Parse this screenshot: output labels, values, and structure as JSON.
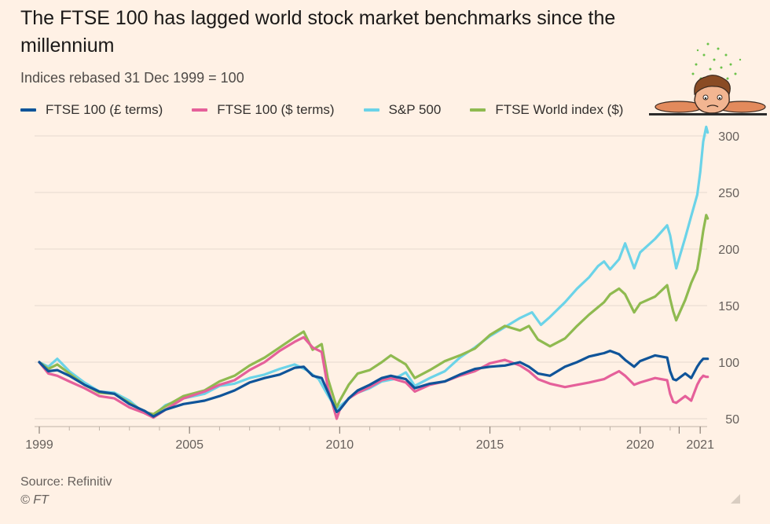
{
  "header": {
    "title": "The FTSE 100 has lagged world stock market benchmarks since the millennium",
    "subtitle": "Indices rebased 31 Dec 1999 = 100"
  },
  "footer": {
    "source": "Source: Refinitiv",
    "copyright": "© FT"
  },
  "legend": [
    {
      "label": "FTSE 100 (£ terms)",
      "color": "#0f5499"
    },
    {
      "label": "FTSE 100 ($ terms)",
      "color": "#e5609a"
    },
    {
      "label": "S&P 500",
      "color": "#6bd3e8"
    },
    {
      "label": "FTSE World index ($)",
      "color": "#8fba50"
    }
  ],
  "chart_data": {
    "type": "line",
    "title": "The FTSE 100 has lagged world stock market benchmarks since the millennium",
    "subtitle": "Indices rebased 31 Dec 1999 = 100",
    "xlabel": "",
    "ylabel": "",
    "xlim": [
      1999,
      2021.1
    ],
    "ylim": [
      50,
      300
    ],
    "yticks": [
      50,
      100,
      150,
      200,
      250,
      300
    ],
    "xticks": [
      {
        "value": 1999,
        "label": "1999"
      },
      {
        "value": 2004,
        "label": "2005"
      },
      {
        "value": 2009,
        "label": "2010"
      },
      {
        "value": 2014,
        "label": "2015"
      },
      {
        "value": 2019,
        "label": "2020"
      },
      {
        "value": 2020.3,
        "label": ""
      },
      {
        "value": 2021,
        "label": "2021"
      }
    ],
    "grid": true,
    "series": [
      {
        "name": "S&P 500",
        "color": "#6bd3e8",
        "points": [
          [
            1999,
            100
          ],
          [
            1999.3,
            96
          ],
          [
            1999.6,
            103
          ],
          [
            2000,
            92
          ],
          [
            2000.5,
            82
          ],
          [
            2001,
            74
          ],
          [
            2001.5,
            73
          ],
          [
            2002,
            66
          ],
          [
            2002.5,
            55
          ],
          [
            2002.8,
            53
          ],
          [
            2003.2,
            62
          ],
          [
            2003.8,
            68
          ],
          [
            2004.5,
            72
          ],
          [
            2005,
            79
          ],
          [
            2005.5,
            81
          ],
          [
            2006,
            86
          ],
          [
            2006.5,
            89
          ],
          [
            2007,
            94
          ],
          [
            2007.5,
            98
          ],
          [
            2007.9,
            93
          ],
          [
            2008.3,
            85
          ],
          [
            2008.6,
            71
          ],
          [
            2008.9,
            58
          ],
          [
            2009,
            61
          ],
          [
            2009.5,
            72
          ],
          [
            2010,
            77
          ],
          [
            2010.4,
            83
          ],
          [
            2010.8,
            85
          ],
          [
            2011.2,
            91
          ],
          [
            2011.5,
            79
          ],
          [
            2012,
            86
          ],
          [
            2012.5,
            92
          ],
          [
            2013,
            104
          ],
          [
            2013.5,
            113
          ],
          [
            2014,
            123
          ],
          [
            2014.5,
            131
          ],
          [
            2015,
            139
          ],
          [
            2015.4,
            144
          ],
          [
            2015.7,
            133
          ],
          [
            2016,
            140
          ],
          [
            2016.5,
            153
          ],
          [
            2016.9,
            165
          ],
          [
            2017.3,
            175
          ],
          [
            2017.6,
            185
          ],
          [
            2017.8,
            189
          ],
          [
            2018,
            182
          ],
          [
            2018.3,
            191
          ],
          [
            2018.5,
            205
          ],
          [
            2018.8,
            183
          ],
          [
            2019,
            197
          ],
          [
            2019.5,
            209
          ],
          [
            2019.9,
            221
          ],
          [
            2020,
            212
          ],
          [
            2020.1,
            197
          ],
          [
            2020.2,
            183
          ],
          [
            2020.5,
            210
          ],
          [
            2020.7,
            229
          ],
          [
            2020.9,
            248
          ],
          [
            2021.0,
            268
          ],
          [
            2021.1,
            295
          ],
          [
            2021.2,
            308
          ],
          [
            2021.25,
            303
          ]
        ]
      },
      {
        "name": "FTSE World index ($)",
        "color": "#8fba50",
        "points": [
          [
            1999,
            100
          ],
          [
            1999.3,
            94
          ],
          [
            1999.6,
            98
          ],
          [
            2000,
            90
          ],
          [
            2000.5,
            80
          ],
          [
            2001,
            73
          ],
          [
            2001.5,
            72
          ],
          [
            2002,
            64
          ],
          [
            2002.5,
            56
          ],
          [
            2002.8,
            54
          ],
          [
            2003.2,
            61
          ],
          [
            2003.8,
            70
          ],
          [
            2004.5,
            75
          ],
          [
            2005,
            83
          ],
          [
            2005.5,
            88
          ],
          [
            2006,
            97
          ],
          [
            2006.5,
            104
          ],
          [
            2007,
            113
          ],
          [
            2007.5,
            122
          ],
          [
            2007.8,
            127
          ],
          [
            2008.1,
            111
          ],
          [
            2008.4,
            116
          ],
          [
            2008.6,
            86
          ],
          [
            2008.9,
            60
          ],
          [
            2009,
            66
          ],
          [
            2009.3,
            80
          ],
          [
            2009.6,
            90
          ],
          [
            2010,
            93
          ],
          [
            2010.4,
            100
          ],
          [
            2010.7,
            106
          ],
          [
            2011.2,
            98
          ],
          [
            2011.5,
            86
          ],
          [
            2012,
            93
          ],
          [
            2012.5,
            101
          ],
          [
            2013,
            106
          ],
          [
            2013.5,
            112
          ],
          [
            2014,
            124
          ],
          [
            2014.5,
            132
          ],
          [
            2015,
            128
          ],
          [
            2015.3,
            132
          ],
          [
            2015.6,
            120
          ],
          [
            2016,
            114
          ],
          [
            2016.5,
            121
          ],
          [
            2016.9,
            132
          ],
          [
            2017.3,
            142
          ],
          [
            2017.8,
            153
          ],
          [
            2018,
            160
          ],
          [
            2018.3,
            165
          ],
          [
            2018.5,
            160
          ],
          [
            2018.8,
            144
          ],
          [
            2019,
            152
          ],
          [
            2019.5,
            158
          ],
          [
            2019.9,
            168
          ],
          [
            2020,
            156
          ],
          [
            2020.1,
            145
          ],
          [
            2020.2,
            137
          ],
          [
            2020.5,
            155
          ],
          [
            2020.7,
            170
          ],
          [
            2020.9,
            182
          ],
          [
            2021.0,
            198
          ],
          [
            2021.1,
            216
          ],
          [
            2021.2,
            230
          ],
          [
            2021.25,
            227
          ]
        ]
      },
      {
        "name": "FTSE 100 ($ terms)",
        "color": "#e5609a",
        "points": [
          [
            1999,
            100
          ],
          [
            1999.3,
            90
          ],
          [
            1999.6,
            88
          ],
          [
            2000,
            83
          ],
          [
            2000.5,
            77
          ],
          [
            2001,
            70
          ],
          [
            2001.5,
            68
          ],
          [
            2002,
            60
          ],
          [
            2002.5,
            55
          ],
          [
            2002.8,
            51
          ],
          [
            2003.2,
            58
          ],
          [
            2003.8,
            68
          ],
          [
            2004.5,
            74
          ],
          [
            2005,
            80
          ],
          [
            2005.5,
            84
          ],
          [
            2006,
            93
          ],
          [
            2006.5,
            100
          ],
          [
            2007,
            110
          ],
          [
            2007.5,
            118
          ],
          [
            2007.8,
            122
          ],
          [
            2008.1,
            113
          ],
          [
            2008.4,
            109
          ],
          [
            2008.6,
            78
          ],
          [
            2008.9,
            50
          ],
          [
            2009,
            58
          ],
          [
            2009.3,
            68
          ],
          [
            2009.6,
            73
          ],
          [
            2010,
            78
          ],
          [
            2010.4,
            84
          ],
          [
            2010.7,
            86
          ],
          [
            2011.2,
            82
          ],
          [
            2011.5,
            74
          ],
          [
            2012,
            80
          ],
          [
            2012.5,
            83
          ],
          [
            2013,
            88
          ],
          [
            2013.5,
            92
          ],
          [
            2014,
            99
          ],
          [
            2014.5,
            102
          ],
          [
            2015,
            97
          ],
          [
            2015.3,
            92
          ],
          [
            2015.6,
            85
          ],
          [
            2016,
            81
          ],
          [
            2016.5,
            78
          ],
          [
            2016.9,
            80
          ],
          [
            2017.3,
            82
          ],
          [
            2017.8,
            85
          ],
          [
            2018,
            88
          ],
          [
            2018.3,
            92
          ],
          [
            2018.5,
            88
          ],
          [
            2018.8,
            80
          ],
          [
            2019,
            82
          ],
          [
            2019.5,
            86
          ],
          [
            2019.9,
            84
          ],
          [
            2020,
            72
          ],
          [
            2020.1,
            65
          ],
          [
            2020.2,
            64
          ],
          [
            2020.5,
            70
          ],
          [
            2020.7,
            66
          ],
          [
            2020.9,
            80
          ],
          [
            2021.0,
            85
          ],
          [
            2021.1,
            88
          ],
          [
            2021.2,
            87
          ],
          [
            2021.25,
            87
          ]
        ]
      },
      {
        "name": "FTSE 100 (£ terms)",
        "color": "#0f5499",
        "points": [
          [
            1999,
            100
          ],
          [
            1999.3,
            92
          ],
          [
            1999.6,
            93
          ],
          [
            2000,
            88
          ],
          [
            2000.5,
            80
          ],
          [
            2001,
            74
          ],
          [
            2001.5,
            72
          ],
          [
            2002,
            63
          ],
          [
            2002.5,
            57
          ],
          [
            2002.8,
            52
          ],
          [
            2003.2,
            58
          ],
          [
            2003.8,
            63
          ],
          [
            2004.5,
            66
          ],
          [
            2005,
            70
          ],
          [
            2005.5,
            75
          ],
          [
            2006,
            82
          ],
          [
            2006.5,
            86
          ],
          [
            2007,
            89
          ],
          [
            2007.5,
            95
          ],
          [
            2007.8,
            96
          ],
          [
            2008.1,
            88
          ],
          [
            2008.4,
            86
          ],
          [
            2008.6,
            74
          ],
          [
            2008.9,
            56
          ],
          [
            2009,
            58
          ],
          [
            2009.3,
            68
          ],
          [
            2009.6,
            75
          ],
          [
            2010,
            80
          ],
          [
            2010.4,
            86
          ],
          [
            2010.7,
            88
          ],
          [
            2011.2,
            85
          ],
          [
            2011.5,
            77
          ],
          [
            2012,
            81
          ],
          [
            2012.5,
            83
          ],
          [
            2013,
            89
          ],
          [
            2013.5,
            94
          ],
          [
            2014,
            96
          ],
          [
            2014.5,
            97
          ],
          [
            2015,
            100
          ],
          [
            2015.3,
            96
          ],
          [
            2015.6,
            90
          ],
          [
            2016,
            88
          ],
          [
            2016.5,
            96
          ],
          [
            2016.9,
            100
          ],
          [
            2017.3,
            105
          ],
          [
            2017.8,
            108
          ],
          [
            2018,
            110
          ],
          [
            2018.3,
            107
          ],
          [
            2018.5,
            102
          ],
          [
            2018.8,
            96
          ],
          [
            2019,
            101
          ],
          [
            2019.5,
            106
          ],
          [
            2019.9,
            104
          ],
          [
            2020,
            92
          ],
          [
            2020.1,
            85
          ],
          [
            2020.2,
            84
          ],
          [
            2020.5,
            90
          ],
          [
            2020.7,
            86
          ],
          [
            2020.9,
            96
          ],
          [
            2021.0,
            100
          ],
          [
            2021.1,
            103
          ],
          [
            2021.2,
            103
          ],
          [
            2021.25,
            103
          ]
        ]
      }
    ]
  }
}
